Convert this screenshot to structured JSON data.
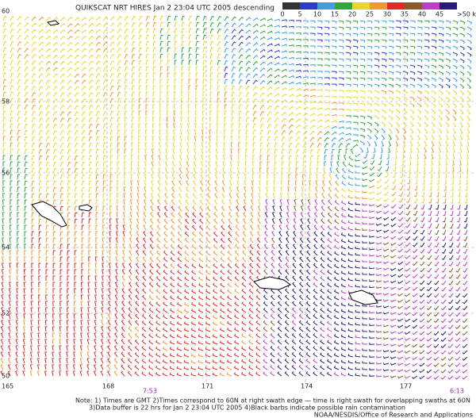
{
  "header": {
    "title": "QUIKSCAT NRT HIRES Jan  2 23:04 UTC 2005 descending"
  },
  "legend": {
    "labels": [
      "0",
      "5",
      "10",
      "15",
      "20",
      "25",
      "30",
      "35",
      "40",
      "45",
      ">50 knots"
    ],
    "colors": [
      "#333333",
      "#2a3cc8",
      "#3aa0e0",
      "#2ea83a",
      "#e8d82a",
      "#f09a28",
      "#e02a24",
      "#8a5a2a",
      "#c23ac8",
      "#2a1a78"
    ]
  },
  "map": {
    "lat_labels": [
      "60",
      "58",
      "56",
      "54",
      "52",
      "50"
    ],
    "lon_labels": [
      "165",
      "168",
      "171",
      "174",
      "177"
    ],
    "times": [
      "7:53",
      "6:13"
    ]
  },
  "footer": {
    "lines": [
      "Note: 1) Times are GMT 2)Times correspond to 60N at right swath edge — time is right swath for overlapping swaths at 60N",
      "3)Data buffer is 22 hrs for Jan  2 23:04 UTC 2005 4)Black barbs indicate possible rain contamination",
      "NOAA/NESDIS/Office of Research and Applications"
    ]
  }
}
